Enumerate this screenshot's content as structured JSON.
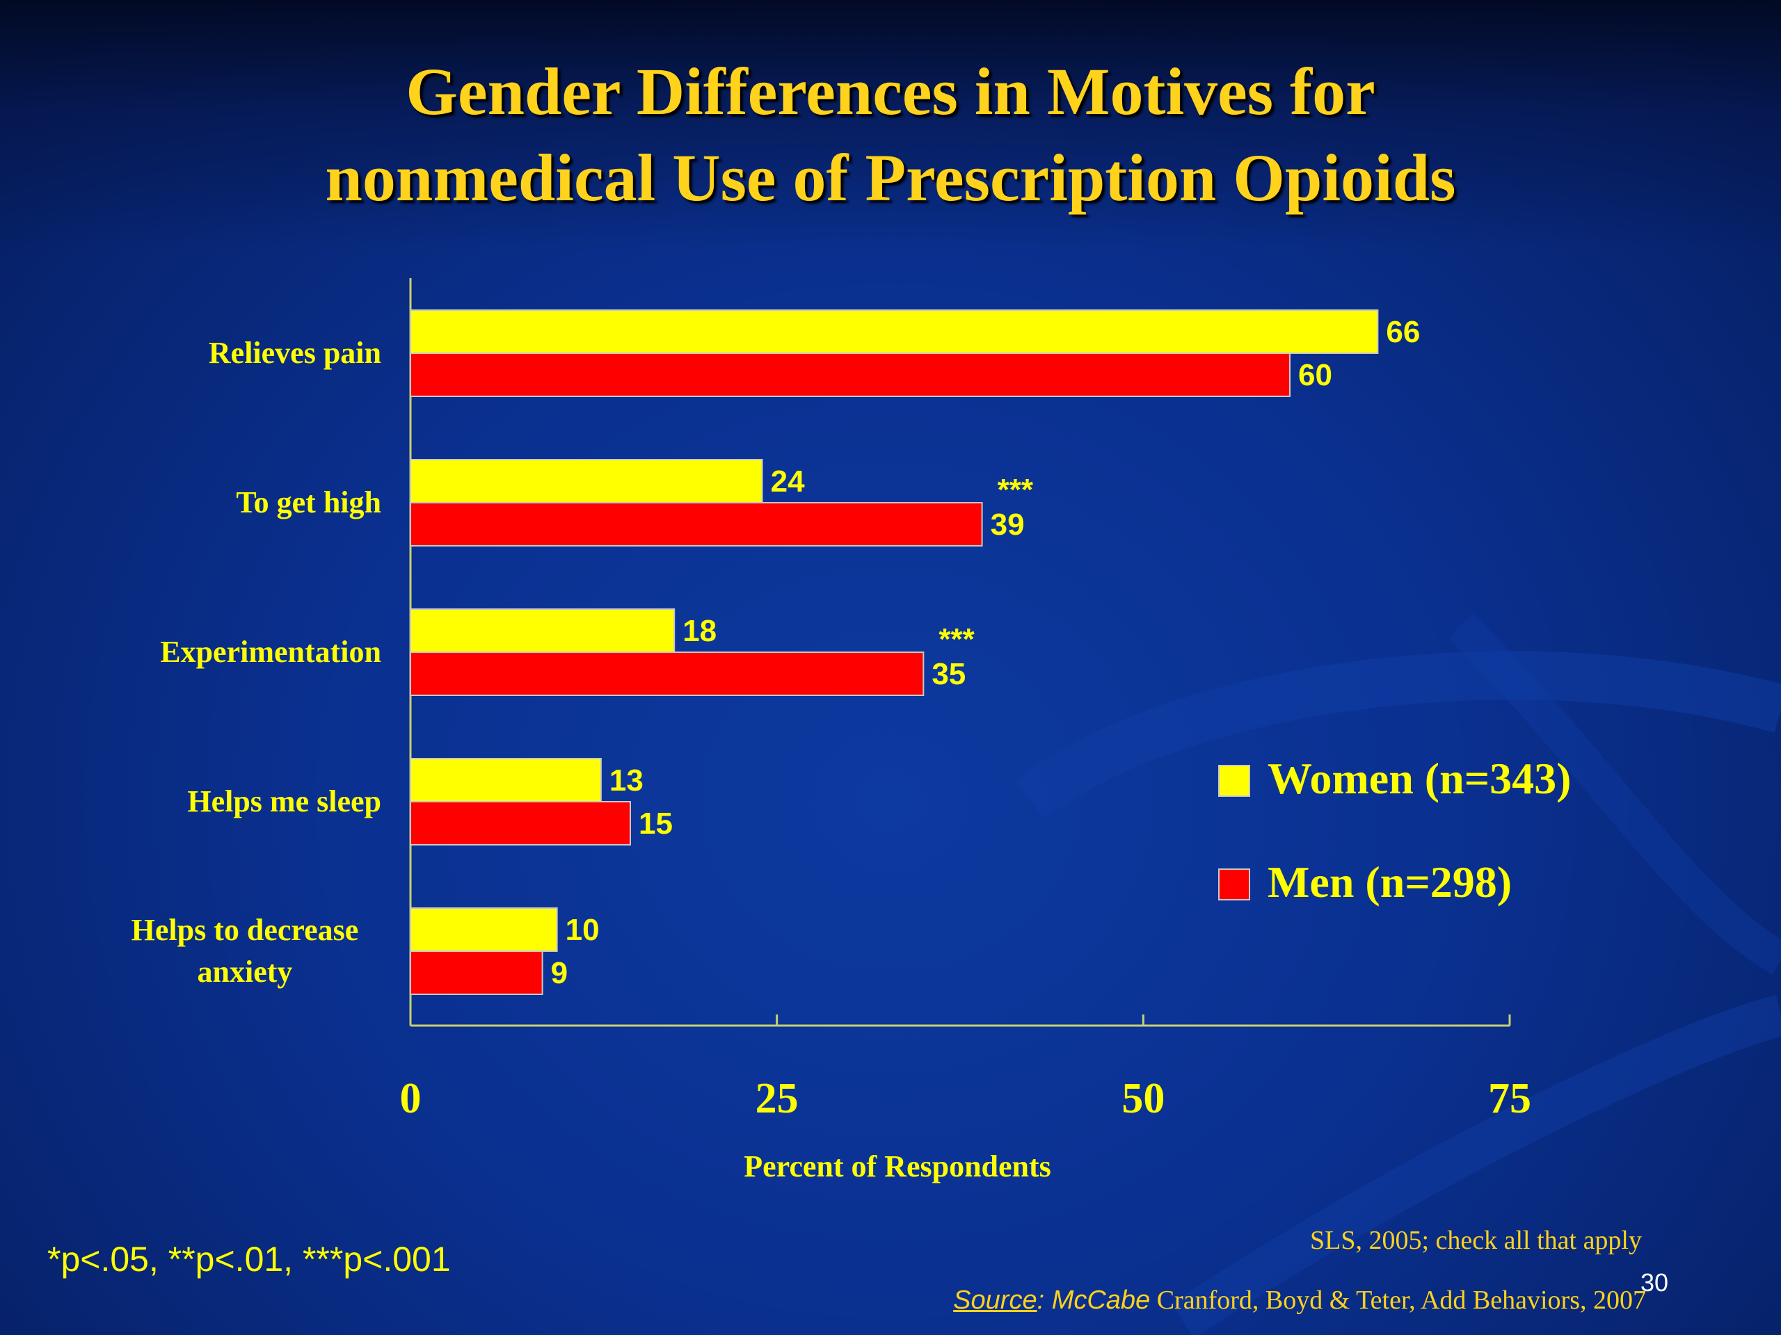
{
  "title_line1": "Gender Differences in Motives for",
  "title_line2": "nonmedical Use of Prescription Opioids",
  "chart_data": {
    "type": "bar",
    "orientation": "horizontal",
    "categories": [
      "Relieves pain",
      "To get high",
      "Experimentation",
      "Helps me sleep",
      "Helps to decrease anxiety"
    ],
    "category_lines": [
      [
        "Relieves pain"
      ],
      [
        "To get high"
      ],
      [
        "Experimentation"
      ],
      [
        "Helps me sleep"
      ],
      [
        "Helps to decrease",
        "anxiety"
      ]
    ],
    "series": [
      {
        "name": "Women (n=343)",
        "color": "#ffff00",
        "values": [
          66,
          24,
          18,
          13,
          10
        ]
      },
      {
        "name": "Men (n=298)",
        "color": "#ff0000",
        "values": [
          60,
          39,
          35,
          15,
          9
        ]
      }
    ],
    "significance": [
      "",
      "***",
      "***",
      "",
      ""
    ],
    "xlabel": "Percent of Respondents",
    "xticks": [
      0,
      25,
      50,
      75
    ],
    "xlim": [
      0,
      75
    ],
    "legend_position": "right"
  },
  "footnote": "*p<.05, **p<.01, ***p<.001",
  "source_note": "SLS, 2005; check all that apply",
  "source_label": "Source",
  "source_colon": ": ",
  "source_author": "McCabe",
  "source_rest": " Cranford, Boyd & Teter, Add Behaviors, 2007",
  "page_number": "30"
}
